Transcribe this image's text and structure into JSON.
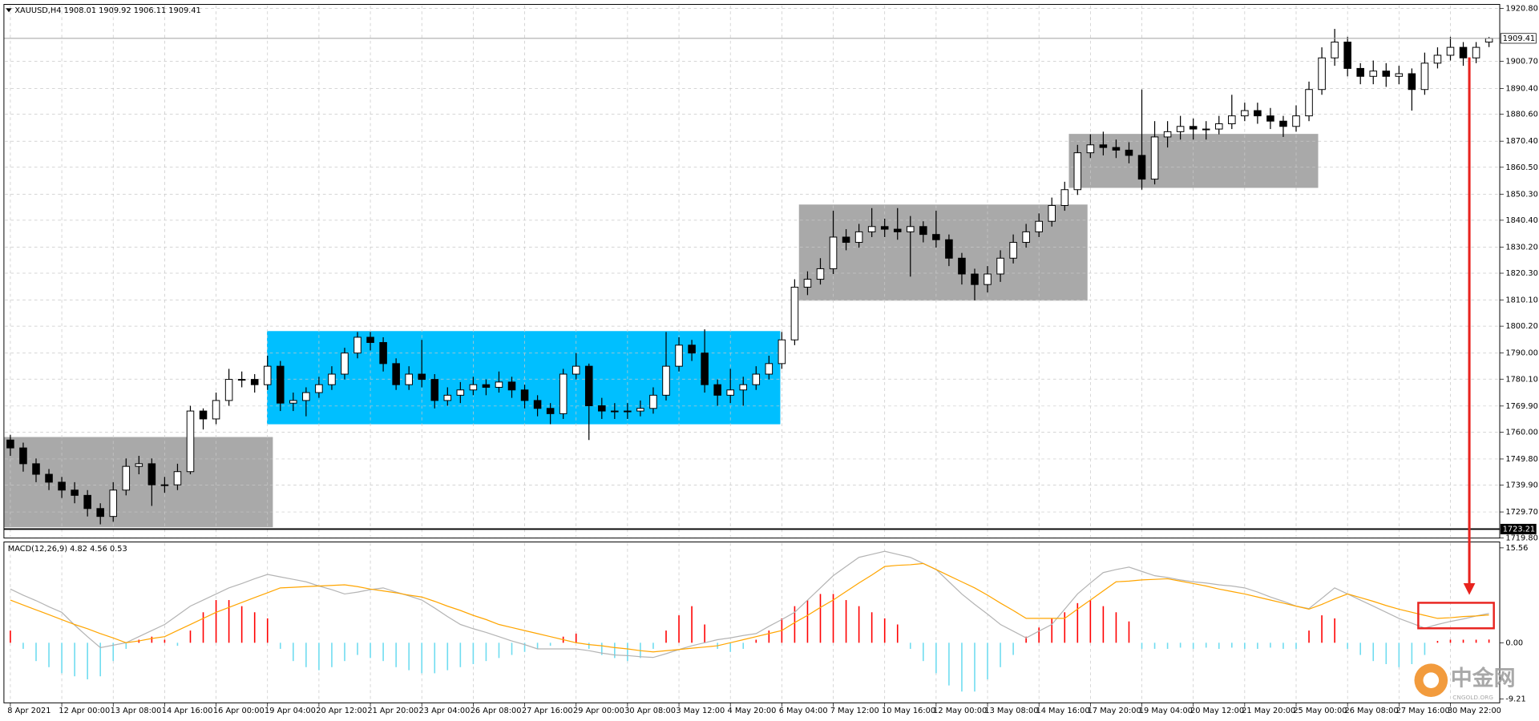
{
  "chart_data": [
    {
      "type": "candlestick",
      "title": "XAUUSD,H4  1908.01 1909.92 1906.11 1909.41",
      "categories": [
        "8 Apr 2021",
        null,
        null,
        null,
        "12 Apr 00:00",
        null,
        null,
        null,
        "13 Apr 08:00",
        null,
        null,
        null,
        "14 Apr 16:00",
        null,
        null,
        null,
        "16 Apr 00:00",
        null,
        null,
        null,
        "19 Apr 04:00",
        null,
        null,
        null,
        "20 Apr 12:00",
        null,
        null,
        null,
        "21 Apr 20:00",
        null,
        null,
        null,
        "23 Apr 04:00",
        null,
        null,
        null,
        "26 Apr 08:00",
        null,
        null,
        null,
        "27 Apr 16:00",
        null,
        null,
        null,
        "29 Apr 00:00",
        null,
        null,
        null,
        "30 Apr 08:00",
        null,
        null,
        null,
        "3 May 12:00",
        null,
        null,
        null,
        "4 May 20:00",
        null,
        null,
        null,
        "6 May 04:00",
        null,
        null,
        null,
        "7 May 12:00",
        null,
        null,
        null,
        "10 May 16:00",
        null,
        null,
        null,
        "12 May 00:00",
        null,
        null,
        null,
        "13 May 08:00",
        null,
        null,
        null,
        "14 May 16:00",
        null,
        null,
        null,
        "17 May 20:00",
        null,
        null,
        null,
        "19 May 04:00",
        null,
        null,
        null,
        "20 May 12:00",
        null,
        null,
        null,
        "21 May 20:00",
        null,
        null,
        null,
        "25 May 00:00",
        null,
        null,
        null,
        "26 May 08:00",
        null,
        null,
        null,
        "27 May 16:00",
        null,
        null,
        null,
        "30 May 22:00",
        null,
        null,
        null
      ],
      "open": [
        1757,
        1754,
        1748,
        1744,
        1741,
        1738,
        1736,
        1731,
        1728,
        1738,
        1747,
        1748,
        1740,
        1740,
        1745,
        1768,
        1765,
        1772,
        1780,
        1780,
        1778,
        1785,
        1771,
        1772,
        1775,
        1778,
        1782,
        1790,
        1796,
        1794,
        1786,
        1778,
        1782,
        1780,
        1772,
        1774,
        1776,
        1778,
        1777,
        1779,
        1776,
        1772,
        1769,
        1767,
        1782,
        1785,
        1770,
        1768,
        1768,
        1768,
        1769,
        1774,
        1785,
        1793,
        1790,
        1778,
        1774,
        1776,
        1778,
        1782,
        1786,
        1795,
        1815,
        1818,
        1822,
        1834,
        1832,
        1836,
        1838,
        1837,
        1836,
        1838,
        1835,
        1833,
        1826,
        1820,
        1816,
        1820,
        1826,
        1832,
        1836,
        1840,
        1846,
        1852,
        1866,
        1869,
        1868,
        1867,
        1865,
        1856,
        1872,
        1874,
        1876,
        1875,
        1875,
        1877,
        1880,
        1882,
        1880,
        1878,
        1876,
        1880,
        1890,
        1902,
        1908,
        1898,
        1895,
        1897,
        1895,
        1896,
        1890,
        1900,
        1903,
        1906,
        1902,
        1908.01
      ],
      "high": [
        1759,
        1756,
        1750,
        1746,
        1743,
        1741,
        1738,
        1733,
        1741,
        1750,
        1751,
        1750,
        1743,
        1748,
        1770,
        1769,
        1775,
        1784,
        1783,
        1782,
        1789,
        1787,
        1775,
        1777,
        1781,
        1785,
        1792,
        1798,
        1798,
        1796,
        1788,
        1785,
        1795,
        1782,
        1777,
        1779,
        1781,
        1780,
        1783,
        1781,
        1778,
        1774,
        1771,
        1784,
        1790,
        1786,
        1773,
        1771,
        1771,
        1772,
        1777,
        1798,
        1796,
        1795,
        1799,
        1780,
        1784,
        1781,
        1785,
        1789,
        1798,
        1818,
        1821,
        1826,
        1844,
        1837,
        1839,
        1845,
        1841,
        1845,
        1842,
        1840,
        1844,
        1835,
        1828,
        1822,
        1823,
        1829,
        1835,
        1839,
        1843,
        1849,
        1855,
        1869,
        1873,
        1874,
        1871,
        1870,
        1890,
        1878,
        1878,
        1880,
        1879,
        1878,
        1880,
        1888,
        1885,
        1885,
        1883,
        1880,
        1884,
        1893,
        1906,
        1913,
        1910,
        1900,
        1901,
        1900,
        1899,
        1898,
        1904,
        1906,
        1910,
        1908,
        1908,
        1909.92
      ],
      "low": [
        1751,
        1745,
        1741,
        1738,
        1735,
        1733,
        1728,
        1725,
        1726,
        1736,
        1744,
        1732,
        1737,
        1738,
        1744,
        1761,
        1763,
        1770,
        1777,
        1775,
        1776,
        1768,
        1768,
        1766,
        1773,
        1776,
        1780,
        1788,
        1791,
        1783,
        1776,
        1776,
        1777,
        1769,
        1770,
        1771,
        1774,
        1774,
        1775,
        1773,
        1769,
        1766,
        1763,
        1765,
        1780,
        1757,
        1765,
        1765,
        1765,
        1766,
        1767,
        1772,
        1783,
        1787,
        1775,
        1770,
        1771,
        1770,
        1776,
        1780,
        1784,
        1793,
        1812,
        1816,
        1820,
        1829,
        1830,
        1834,
        1834,
        1833,
        1819,
        1832,
        1830,
        1823,
        1816,
        1810,
        1813,
        1817,
        1824,
        1830,
        1834,
        1838,
        1844,
        1850,
        1864,
        1865,
        1864,
        1862,
        1852,
        1854,
        1868,
        1871,
        1871,
        1871,
        1873,
        1875,
        1878,
        1877,
        1875,
        1872,
        1874,
        1878,
        1888,
        1899,
        1895,
        1892,
        1892,
        1891,
        1892,
        1882,
        1888,
        1898,
        1901,
        1899,
        1900,
        1906.11
      ],
      "close": [
        1754,
        1748,
        1744,
        1741,
        1738,
        1736,
        1731,
        1728,
        1738,
        1747,
        1748,
        1740,
        1740,
        1745,
        1768,
        1765,
        1772,
        1780,
        1780,
        1778,
        1785,
        1771,
        1772,
        1775,
        1778,
        1782,
        1790,
        1796,
        1794,
        1786,
        1778,
        1782,
        1780,
        1772,
        1774,
        1776,
        1778,
        1777,
        1779,
        1776,
        1772,
        1769,
        1767,
        1782,
        1785,
        1770,
        1768,
        1768,
        1768,
        1769,
        1774,
        1785,
        1793,
        1790,
        1778,
        1774,
        1776,
        1778,
        1782,
        1786,
        1795,
        1815,
        1818,
        1822,
        1834,
        1832,
        1836,
        1838,
        1837,
        1836,
        1838,
        1835,
        1833,
        1826,
        1820,
        1816,
        1820,
        1826,
        1832,
        1836,
        1840,
        1846,
        1852,
        1866,
        1869,
        1868,
        1867,
        1865,
        1856,
        1872,
        1874,
        1876,
        1875,
        1875,
        1877,
        1880,
        1882,
        1880,
        1878,
        1876,
        1880,
        1890,
        1902,
        1908,
        1898,
        1895,
        1897,
        1895,
        1896,
        1890,
        1900,
        1903,
        1906,
        1902,
        1906,
        1909.41
      ],
      "up_color": "#ffffff",
      "down_color": "#000000",
      "ylim": [
        1719.8,
        1920.8
      ],
      "yticks": [
        {
          "value": 1920.8,
          "label": "1920.80"
        },
        {
          "value": 1900.7,
          "label": "1900.70"
        },
        {
          "value": 1890.4,
          "label": "1890.40"
        },
        {
          "value": 1880.6,
          "label": "1880.60"
        },
        {
          "value": 1870.4,
          "label": "1870.40"
        },
        {
          "value": 1860.5,
          "label": "1860.50"
        },
        {
          "value": 1850.3,
          "label": "1850.30"
        },
        {
          "value": 1840.4,
          "label": "1840.40"
        },
        {
          "value": 1830.2,
          "label": "1830.20"
        },
        {
          "value": 1820.3,
          "label": "1820.30"
        },
        {
          "value": 1810.1,
          "label": "1810.10"
        },
        {
          "value": 1800.2,
          "label": "1800.20"
        },
        {
          "value": 1790,
          "label": "1790.00"
        },
        {
          "value": 1780.1,
          "label": "1780.10"
        },
        {
          "value": 1769.9,
          "label": "1769.90"
        },
        {
          "value": 1760,
          "label": "1760.00"
        },
        {
          "value": 1749.8,
          "label": "1749.80"
        },
        {
          "value": 1739.9,
          "label": "1739.90"
        },
        {
          "value": 1729.7,
          "label": "1729.70"
        },
        {
          "value": 1719.8,
          "label": "1719.80"
        }
      ],
      "grid": true,
      "price_lines": [
        {
          "value": 1909.41,
          "label": "1909.41",
          "color": "#a0a0a0",
          "label_background": "#ffffff"
        },
        {
          "value": 1723.21,
          "label": "1723.21",
          "color": "#000000",
          "label_background": "#000000"
        }
      ]
    },
    {
      "type": "macd",
      "title": "MACD(12,26,9) 4.82 4.56 0.53",
      "series": [
        {
          "color": "#b4b4b4",
          "values": [
            8.8,
            7.8,
            6.9,
            5.9,
            5.0,
            2.9,
            1.0,
            -0.8,
            -0.4,
            0,
            1,
            2,
            3,
            4.5,
            6,
            7,
            8,
            9,
            9.7,
            10.5,
            11.2,
            10.8,
            10.4,
            10,
            9.3,
            8.7,
            8,
            8.3,
            8.7,
            9,
            8.3,
            7.7,
            7,
            5.7,
            4.3,
            3,
            2.3,
            1.7,
            1,
            0.3,
            -0.3,
            -1,
            -1,
            -1,
            -1,
            -1.3,
            -1.7,
            -2,
            -2.1,
            -2.3,
            -2.4,
            -1.8,
            -1.1,
            -0.5,
            0,
            0.5,
            0.8,
            1.2,
            1.5,
            2.7,
            3.8,
            5,
            7,
            9,
            11,
            12.5,
            14,
            14.5,
            15,
            14.5,
            14,
            13,
            12,
            10,
            8,
            6.3,
            4.7,
            3,
            1.9,
            0.8,
            1.9,
            3,
            5.5,
            8,
            9.8,
            11.5,
            12,
            12.4,
            11.7,
            11,
            10.7,
            10.3,
            10,
            9.8,
            9.5,
            9.3,
            9,
            8.3,
            7.5,
            6.8,
            6,
            5.6,
            7.3,
            9,
            8,
            7,
            6,
            5,
            4,
            3.2,
            2.4,
            3,
            3.5,
            3.9,
            4.4,
            4.82
          ]
        },
        {
          "color": "#ffa500",
          "values": [
            7,
            6.2,
            5.4,
            4.6,
            3.8,
            3,
            2.3,
            1.5,
            0.8,
            0,
            0.3,
            0.7,
            1,
            2,
            3,
            4,
            5,
            5.8,
            6.6,
            7.4,
            8.2,
            9,
            9.1,
            9.2,
            9.3,
            9.4,
            9.5,
            9.2,
            8.8,
            8.5,
            8.2,
            7.8,
            7.5,
            6.8,
            6,
            5.3,
            4.5,
            3.8,
            3,
            2.5,
            2,
            1.5,
            1,
            0.5,
            0,
            -0.3,
            -0.5,
            -0.8,
            -1,
            -1.3,
            -1.5,
            -1.3,
            -1.1,
            -0.9,
            -0.7,
            -0.5,
            0,
            0.5,
            1,
            1.5,
            2,
            3.3,
            4.5,
            5.8,
            7,
            8.4,
            9.8,
            11.1,
            12.5,
            12.7,
            12.8,
            13,
            12,
            11,
            10,
            9,
            7.8,
            6.5,
            5.3,
            4,
            4,
            4,
            4,
            5.5,
            7,
            8.5,
            10,
            10.1,
            10.3,
            10.4,
            10.5,
            10.1,
            9.7,
            9.3,
            8.8,
            8.4,
            8,
            7.5,
            7,
            6.5,
            6,
            5.5,
            6.3,
            7.2,
            8,
            7.4,
            6.8,
            6.1,
            5.5,
            5,
            4.5,
            4,
            4.1,
            4.3,
            4.4,
            4.56
          ]
        }
      ],
      "histogram": {
        "positive_color": "#ff0000",
        "negative_color": "#6fdcf0",
        "values": [
          2,
          -1,
          -3,
          -4,
          -5,
          -5.5,
          -6,
          -5.5,
          -3,
          -1,
          0.5,
          1,
          0.5,
          -0.5,
          2,
          5,
          7,
          7,
          6,
          5,
          4,
          -1,
          -3,
          -4,
          -4.5,
          -4,
          -3,
          -2,
          -2.5,
          -3,
          -4,
          -4.5,
          -5,
          -5,
          -4.5,
          -4,
          -3.5,
          -3,
          -2.5,
          -2,
          -1.5,
          -1,
          -0.5,
          1,
          1.5,
          -1,
          -2,
          -2.5,
          -3,
          -2.5,
          -1,
          2,
          4.5,
          6,
          3,
          -1,
          -1.5,
          -1,
          0.5,
          2,
          4,
          6,
          7,
          8,
          8,
          7,
          6,
          5,
          4,
          3,
          -1,
          -3,
          -5,
          -7,
          -8,
          -8,
          -6,
          -4,
          -2,
          1,
          2.5,
          4,
          5,
          6.5,
          7,
          6,
          5,
          3.5,
          -1,
          -1,
          -1,
          -0.8,
          -1,
          -0.8,
          -1,
          -0.8,
          -1,
          -1,
          -0.8,
          -1,
          -1,
          2,
          4.5,
          4,
          -1,
          -2,
          -3,
          -3.5,
          -4,
          -3.5,
          -2,
          0.3,
          0.5,
          0.5,
          0.5,
          0.53
        ]
      },
      "ylim": [
        -9.21,
        15.56
      ],
      "yticks": [
        {
          "value": 15.56,
          "label": "15.56"
        },
        {
          "value": 0,
          "label": "0.00"
        },
        {
          "value": -9.21,
          "label": "-9.21"
        }
      ]
    }
  ],
  "watermark": {
    "text": "中金网",
    "subtext": "CNGOLD.ORG"
  }
}
